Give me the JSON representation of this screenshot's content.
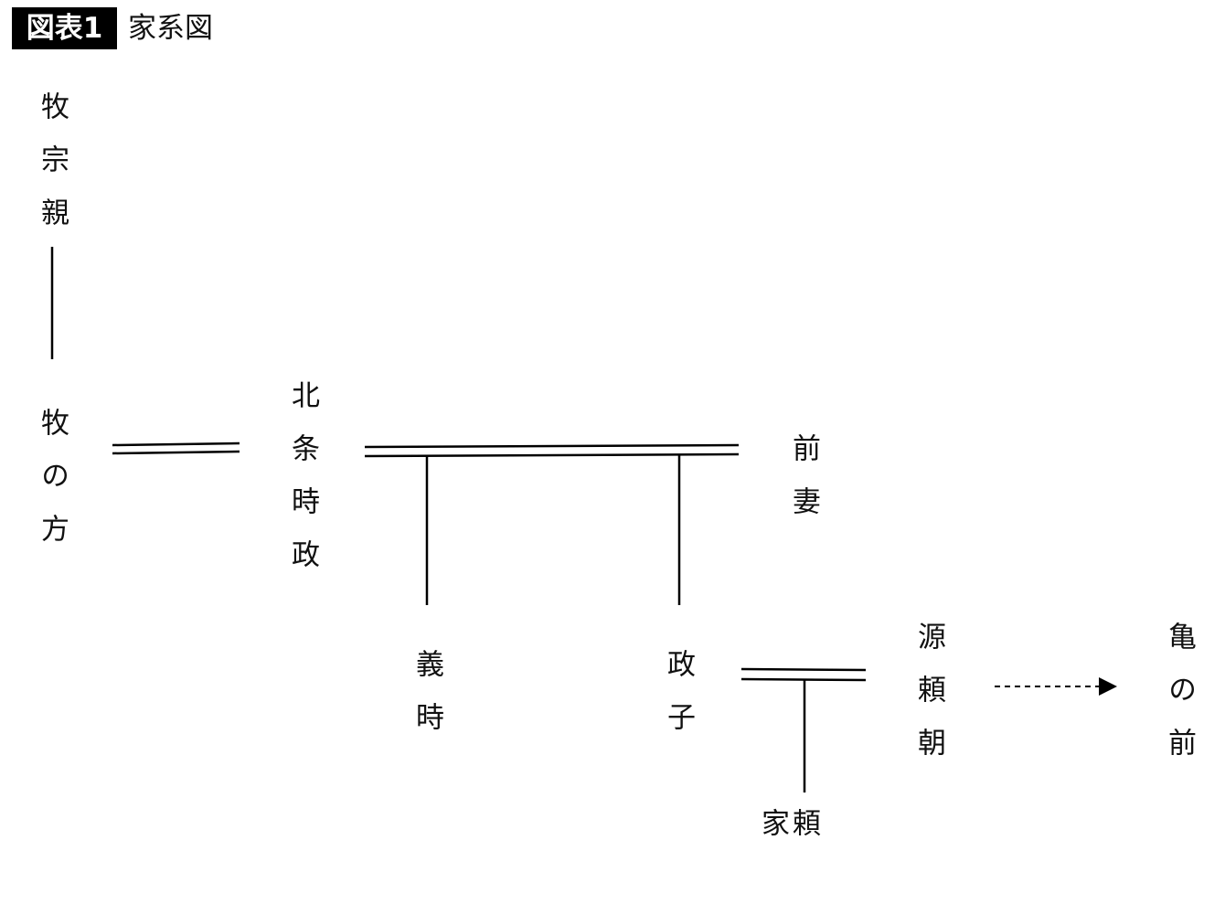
{
  "figure": {
    "badge": "図表1",
    "title": "家系図"
  },
  "people": {
    "maki_munechika": "牧宗親",
    "maki_no_kata": "牧の方",
    "hojo_tokimasa": "北条時政",
    "zensai": "前妻",
    "yoshitoki": "義時",
    "masako": "政子",
    "minamoto_yoritomo": "源頼朝",
    "yoriie": "頼家",
    "kame_no_mae": "亀の前"
  },
  "colors": {
    "line": "#000000",
    "badge_bg": "#000000"
  }
}
